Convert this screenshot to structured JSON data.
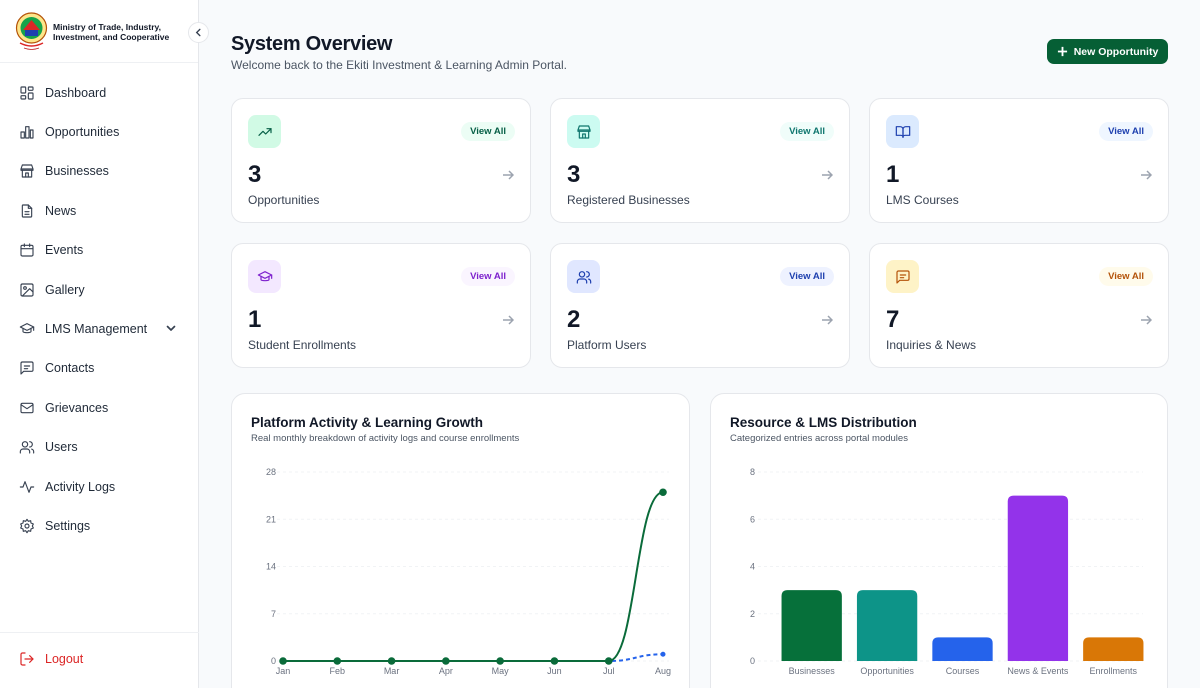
{
  "sidebar": {
    "org_name": "Ministry of Trade, Industry, Investment, and Cooperative",
    "items": [
      {
        "label": "Dashboard",
        "icon": "dashboard-icon"
      },
      {
        "label": "Opportunities",
        "icon": "bar-chart-icon"
      },
      {
        "label": "Businesses",
        "icon": "store-icon"
      },
      {
        "label": "News",
        "icon": "document-icon"
      },
      {
        "label": "Events",
        "icon": "calendar-icon"
      },
      {
        "label": "Gallery",
        "icon": "image-icon"
      },
      {
        "label": "LMS Management",
        "icon": "graduation-cap-icon"
      },
      {
        "label": "Contacts",
        "icon": "message-icon"
      },
      {
        "label": "Grievances",
        "icon": "mail-icon"
      },
      {
        "label": "Users",
        "icon": "users-icon"
      },
      {
        "label": "Activity Logs",
        "icon": "activity-icon"
      },
      {
        "label": "Settings",
        "icon": "gear-icon"
      }
    ],
    "logout_label": "Logout"
  },
  "header": {
    "title": "System Overview",
    "subtitle": "Welcome back to the Ekiti Investment & Learning Admin Portal.",
    "new_button": "New Opportunity"
  },
  "stats": [
    {
      "value": "3",
      "label": "Opportunities",
      "view": "View All",
      "icon": "trend-up-icon",
      "color": "#065f46",
      "bg": "#d1fae5"
    },
    {
      "value": "3",
      "label": "Registered Businesses",
      "view": "View All",
      "icon": "store-icon",
      "color": "#0f766e",
      "bg": "#ccfbf1"
    },
    {
      "value": "1",
      "label": "LMS Courses",
      "view": "View All",
      "icon": "book-icon",
      "color": "#1e40af",
      "bg": "#dbeafe"
    },
    {
      "value": "1",
      "label": "Student Enrollments",
      "view": "View All",
      "icon": "graduation-cap-icon",
      "color": "#7e22ce",
      "bg": "#f3e8ff"
    },
    {
      "value": "2",
      "label": "Platform Users",
      "view": "View All",
      "icon": "users-icon",
      "color": "#1e40af",
      "bg": "#e0e7ff"
    },
    {
      "value": "7",
      "label": "Inquiries & News",
      "view": "View All",
      "icon": "message-icon",
      "color": "#b45309",
      "bg": "#fef3c7"
    }
  ],
  "activity_chart": {
    "title": "Platform Activity & Learning Growth",
    "subtitle": "Real monthly breakdown of activity logs and course enrollments"
  },
  "distribution_chart": {
    "title": "Resource & LMS Distribution",
    "subtitle": "Categorized entries across portal modules"
  },
  "chart_data": [
    {
      "type": "line",
      "x": [
        "Jan",
        "Feb",
        "Mar",
        "Apr",
        "May",
        "Jun",
        "Jul",
        "Aug"
      ],
      "ylim": [
        0,
        28
      ],
      "yticks": [
        "0",
        "7",
        "14",
        "21",
        "28"
      ],
      "grid": true,
      "series": [
        {
          "values": [
            0,
            0,
            0,
            0,
            0,
            0,
            0,
            25
          ],
          "color": "#0a6b3a",
          "style": "solid"
        },
        {
          "values": [
            0,
            0,
            0,
            0,
            0,
            0,
            0,
            1
          ],
          "color": "#2563eb",
          "style": "dashed"
        }
      ]
    },
    {
      "type": "bar",
      "categories": [
        "Businesses",
        "Opportunities",
        "Courses",
        "News & Events",
        "Enrollments"
      ],
      "values": [
        3,
        3,
        1,
        7,
        1
      ],
      "colors": [
        "#06703a",
        "#0d9488",
        "#2563eb",
        "#9333ea",
        "#d97706"
      ],
      "ylim": [
        0,
        8
      ],
      "yticks": [
        "0",
        "2",
        "4",
        "6",
        "8"
      ],
      "grid": true
    }
  ]
}
